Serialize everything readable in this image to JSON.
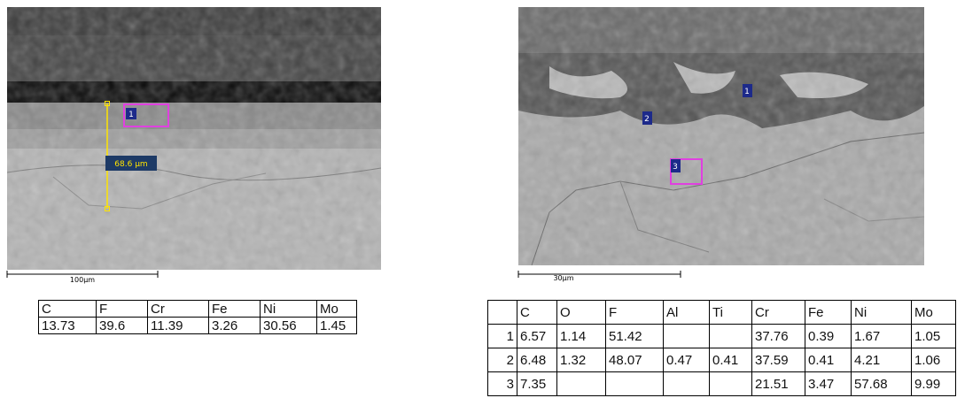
{
  "left_image": {
    "scale_bar": "100µm",
    "measurement": "68.6 µm",
    "markers": [
      "1"
    ]
  },
  "left_table": {
    "header": [
      "C",
      "F",
      "Cr",
      "Fe",
      "Ni",
      "Mo"
    ],
    "rows": [
      [
        "13.73",
        "39.6",
        "11.39",
        "3.26",
        "30.56",
        "1.45"
      ]
    ]
  },
  "right_image": {
    "scale_bar": "30µm",
    "markers": [
      "1",
      "2",
      "3"
    ]
  },
  "right_table": {
    "header": [
      "C",
      "O",
      "F",
      "Al",
      "Ti",
      "Cr",
      "Fe",
      "Ni",
      "Mo"
    ],
    "rows": [
      {
        "label": "1",
        "cells": [
          "6.57",
          "1.14",
          "51.42",
          null,
          null,
          "37.76",
          "0.39",
          "1.67",
          "1.05"
        ]
      },
      {
        "label": "2",
        "cells": [
          "6.48",
          "1.32",
          "48.07",
          "0.47",
          "0.41",
          "37.59",
          "0.41",
          "4.21",
          "1.06"
        ]
      },
      {
        "label": "3",
        "cells": [
          "7.35",
          null,
          null,
          null,
          null,
          "21.51",
          "3.47",
          "57.68",
          "9.99"
        ]
      }
    ]
  }
}
